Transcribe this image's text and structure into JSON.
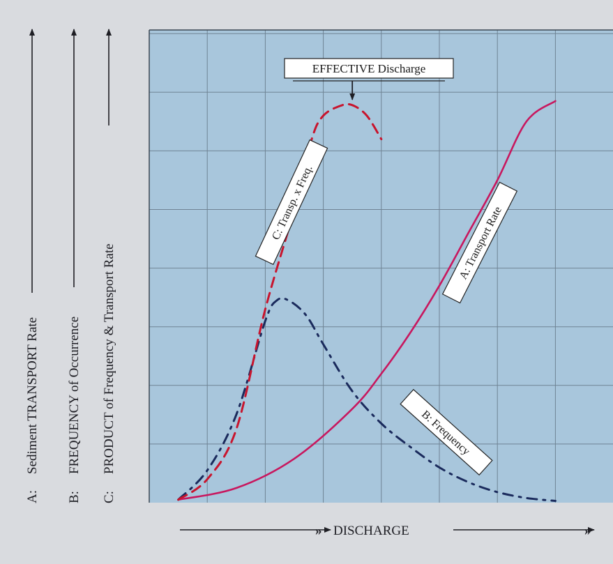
{
  "chart_data": {
    "type": "line",
    "title": "",
    "xlabel": "DISCHARGE",
    "ylabels": [
      {
        "prefix": "A:",
        "text": "Sediment TRANSPORT Rate"
      },
      {
        "prefix": "B:",
        "text": "FREQUENCY of Occurrence"
      },
      {
        "prefix": "C:",
        "text": "PRODUCT of Frequency & Transport Rate"
      }
    ],
    "xlim": [
      0,
      7.2
    ],
    "ylim": [
      0,
      8
    ],
    "grid": true,
    "axis_ticks": "none",
    "annotation": {
      "text": "EFFECTIVE Discharge",
      "x": 3.5,
      "y": 6.7
    },
    "series": [
      {
        "name": "A: Transport Rate",
        "style": "solid",
        "color": "#c8175e",
        "x": [
          0.5,
          1.5,
          2.5,
          3.5,
          4.0,
          4.5,
          5.0,
          5.5,
          6.0,
          6.5,
          7.0
        ],
        "y": [
          0.05,
          0.25,
          0.75,
          1.6,
          2.2,
          2.9,
          3.7,
          4.6,
          5.5,
          6.5,
          6.85
        ]
      },
      {
        "name": "B: Frequency",
        "style": "dash-dot",
        "color": "#1a2a5c",
        "x": [
          0.5,
          1.0,
          1.5,
          2.0,
          2.2,
          2.4,
          2.7,
          3.0,
          3.5,
          4.0,
          4.5,
          5.0,
          5.5,
          6.0,
          6.5,
          7.0
        ],
        "y": [
          0.05,
          0.55,
          1.5,
          3.1,
          3.45,
          3.45,
          3.2,
          2.7,
          1.9,
          1.35,
          0.95,
          0.6,
          0.35,
          0.18,
          0.08,
          0.03
        ]
      },
      {
        "name": "C: Transp. x Freq.",
        "style": "dashed",
        "color": "#c8142d",
        "x": [
          0.5,
          1.0,
          1.5,
          2.0,
          2.5,
          2.8,
          3.0,
          3.3,
          3.5,
          3.75,
          4.0
        ],
        "y": [
          0.05,
          0.4,
          1.25,
          3.3,
          5.0,
          6.2,
          6.6,
          6.77,
          6.78,
          6.6,
          6.2
        ]
      }
    ]
  },
  "labels": {
    "transport": "A:   Transport Rate",
    "frequency": "B:   Frequency",
    "product": "C:   Transp. x Freq."
  },
  "colors": {
    "plot_background": "#a8c6dc",
    "grid": "#6f8394",
    "page_background": "#d9dbdf",
    "text": "#1e1e24"
  }
}
